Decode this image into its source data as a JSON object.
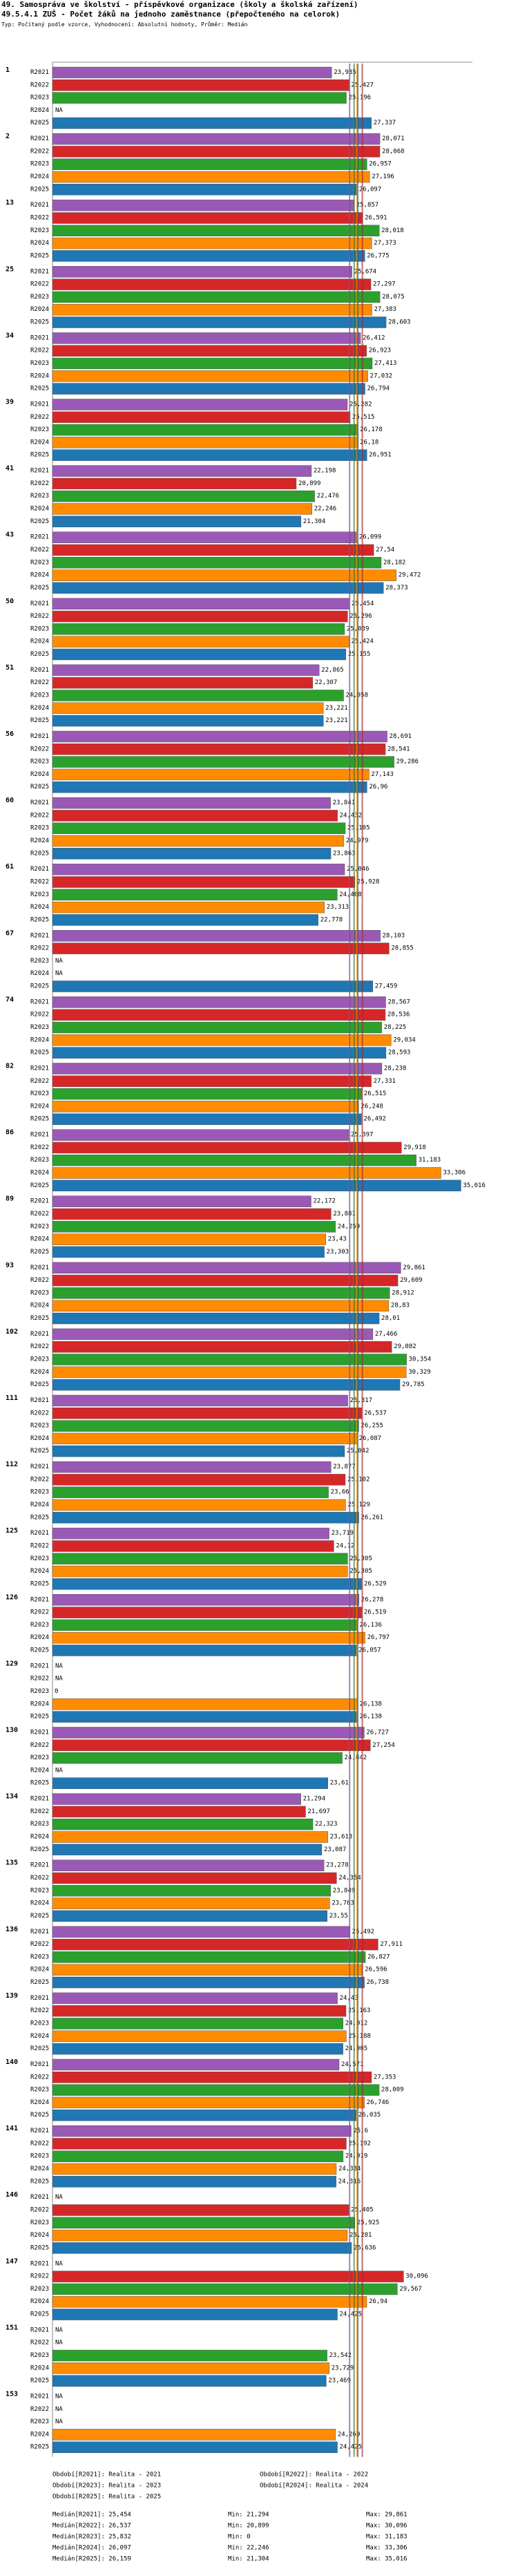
{
  "header": {
    "title_line1": "49. Samospráva ve školství - příspěvkové organizace (školy a školská zařízení)",
    "title_line2": "49.5.4.1 ZUŠ - Počet žáků na jednoho zaměstnance (přepočteného na celorok)",
    "subtitle": "Typ: Počítaný podle vzorce, Vyhodnocení: Absolutní hodnoty, Průměr: Medián"
  },
  "colors": {
    "R2021": "#9b59b6",
    "R2022": "#d62728",
    "R2023": "#2ca02c",
    "R2024": "#ff8c00",
    "R2025": "#1f77b4"
  },
  "chart_data": {
    "type": "bar",
    "orientation": "horizontal",
    "series_names": [
      "R2021",
      "R2022",
      "R2023",
      "R2024",
      "R2025"
    ],
    "xlim": [
      0,
      36
    ],
    "groups": [
      {
        "id": "1",
        "values": [
          23.935,
          25.427,
          25.196,
          null,
          27.337
        ]
      },
      {
        "id": "2",
        "values": [
          28.071,
          28.068,
          26.957,
          27.196,
          26.097
        ]
      },
      {
        "id": "13",
        "values": [
          25.857,
          26.591,
          28.018,
          27.373,
          26.775
        ]
      },
      {
        "id": "25",
        "values": [
          25.674,
          27.297,
          28.075,
          27.383,
          28.603
        ]
      },
      {
        "id": "34",
        "values": [
          26.412,
          26.923,
          27.413,
          27.032,
          26.794
        ]
      },
      {
        "id": "39",
        "values": [
          25.282,
          25.515,
          26.178,
          26.18,
          26.951
        ]
      },
      {
        "id": "41",
        "values": [
          22.198,
          20.899,
          22.476,
          22.246,
          21.304
        ]
      },
      {
        "id": "43",
        "values": [
          26.099,
          27.54,
          28.182,
          29.472,
          28.373
        ]
      },
      {
        "id": "50",
        "values": [
          25.454,
          25.296,
          25.039,
          25.424,
          25.155
        ]
      },
      {
        "id": "51",
        "values": [
          22.865,
          22.307,
          24.958,
          23.221,
          23.221
        ]
      },
      {
        "id": "56",
        "values": [
          28.691,
          28.541,
          29.286,
          27.143,
          26.96
        ]
      },
      {
        "id": "60",
        "values": [
          23.841,
          24.432,
          25.105,
          24.979,
          23.863
        ]
      },
      {
        "id": "61",
        "values": [
          25.046,
          25.928,
          24.408,
          23.313,
          22.778
        ]
      },
      {
        "id": "67",
        "values": [
          28.103,
          28.855,
          null,
          null,
          27.459
        ]
      },
      {
        "id": "74",
        "values": [
          28.567,
          28.536,
          28.225,
          29.034,
          28.593
        ]
      },
      {
        "id": "82",
        "values": [
          28.238,
          27.331,
          26.515,
          26.248,
          26.492
        ]
      },
      {
        "id": "86",
        "values": [
          25.397,
          29.918,
          31.183,
          33.306,
          35.016
        ]
      },
      {
        "id": "89",
        "values": [
          22.172,
          23.881,
          24.259,
          23.43,
          23.303
        ]
      },
      {
        "id": "93",
        "values": [
          29.861,
          29.609,
          28.912,
          28.83,
          28.01
        ]
      },
      {
        "id": "102",
        "values": [
          27.466,
          29.082,
          30.354,
          30.329,
          29.785
        ]
      },
      {
        "id": "111",
        "values": [
          25.317,
          26.537,
          26.255,
          26.087,
          25.042
        ]
      },
      {
        "id": "112",
        "values": [
          23.877,
          25.102,
          23.66,
          25.129,
          26.261
        ]
      },
      {
        "id": "125",
        "values": [
          23.719,
          24.12,
          25.305,
          25.305,
          26.529
        ]
      },
      {
        "id": "126",
        "values": [
          26.278,
          26.519,
          26.136,
          26.797,
          26.057
        ]
      },
      {
        "id": "129",
        "values": [
          null,
          null,
          0,
          26.138,
          26.138
        ]
      },
      {
        "id": "130",
        "values": [
          26.727,
          27.254,
          24.842,
          null,
          23.61
        ]
      },
      {
        "id": "134",
        "values": [
          21.294,
          21.697,
          22.323,
          23.613,
          23.087
        ]
      },
      {
        "id": "135",
        "values": [
          23.278,
          24.354,
          23.849,
          23.763,
          23.55
        ]
      },
      {
        "id": "136",
        "values": [
          25.492,
          27.911,
          26.827,
          26.596,
          26.738
        ]
      },
      {
        "id": "139",
        "values": [
          24.43,
          25.163,
          24.912,
          25.188,
          24.905
        ]
      },
      {
        "id": "140",
        "values": [
          24.571,
          27.353,
          28.009,
          26.746,
          26.035
        ]
      },
      {
        "id": "141",
        "values": [
          25.6,
          25.192,
          24.919,
          24.334,
          24.316
        ]
      },
      {
        "id": "146",
        "values": [
          null,
          25.405,
          25.925,
          25.281,
          25.636
        ]
      },
      {
        "id": "147",
        "values": [
          null,
          30.096,
          29.567,
          26.94,
          24.425
        ]
      },
      {
        "id": "151",
        "values": [
          null,
          null,
          23.542,
          23.729,
          23.469
        ]
      },
      {
        "id": "153",
        "values": [
          null,
          null,
          null,
          24.269,
          24.425
        ]
      }
    ],
    "value_labels": [
      [
        "23,935",
        "25,427",
        "25,196",
        "NA",
        "27,337"
      ],
      [
        "28,071",
        "28,068",
        "26,957",
        "27,196",
        "26,097"
      ],
      [
        "25,857",
        "26,591",
        "28,018",
        "27,373",
        "26,775"
      ],
      [
        "25,674",
        "27,297",
        "28,075",
        "27,383",
        "28,603"
      ],
      [
        "26,412",
        "26,923",
        "27,413",
        "27,032",
        "26,794"
      ],
      [
        "25,282",
        "25,515",
        "26,178",
        "26,18",
        "26,951"
      ],
      [
        "22,198",
        "20,899",
        "22,476",
        "22,246",
        "21,304"
      ],
      [
        "26,099",
        "27,54",
        "28,182",
        "29,472",
        "28,373"
      ],
      [
        "25,454",
        "25,296",
        "25,039",
        "25,424",
        "25,155"
      ],
      [
        "22,865",
        "22,307",
        "24,958",
        "23,221",
        "23,221"
      ],
      [
        "28,691",
        "28,541",
        "29,286",
        "27,143",
        "26,96"
      ],
      [
        "23,841",
        "24,432",
        "25,105",
        "24,979",
        "23,863"
      ],
      [
        "25,046",
        "25,928",
        "24,408",
        "23,313",
        "22,778"
      ],
      [
        "28,103",
        "28,855",
        "NA",
        "NA",
        "27,459"
      ],
      [
        "28,567",
        "28,536",
        "28,225",
        "29,034",
        "28,593"
      ],
      [
        "28,238",
        "27,331",
        "26,515",
        "26,248",
        "26,492"
      ],
      [
        "25,397",
        "29,918",
        "31,183",
        "33,306",
        "35,016"
      ],
      [
        "22,172",
        "23,881",
        "24,259",
        "23,43",
        "23,303"
      ],
      [
        "29,861",
        "29,609",
        "28,912",
        "28,83",
        "28,01"
      ],
      [
        "27,466",
        "29,082",
        "30,354",
        "30,329",
        "29,785"
      ],
      [
        "25,317",
        "26,537",
        "26,255",
        "26,087",
        "25,042"
      ],
      [
        "23,877",
        "25,102",
        "23,66",
        "25,129",
        "26,261"
      ],
      [
        "23,719",
        "24,12",
        "25,305",
        "25,305",
        "26,529"
      ],
      [
        "26,278",
        "26,519",
        "26,136",
        "26,797",
        "26,057"
      ],
      [
        "NA",
        "NA",
        "0",
        "26,138",
        "26,138"
      ],
      [
        "26,727",
        "27,254",
        "24,842",
        "NA",
        "23,61"
      ],
      [
        "21,294",
        "21,697",
        "22,323",
        "23,613",
        "23,087"
      ],
      [
        "23,278",
        "24,354",
        "23,849",
        "23,763",
        "23,55"
      ],
      [
        "25,492",
        "27,911",
        "26,827",
        "26,596",
        "26,738"
      ],
      [
        "24,43",
        "25,163",
        "24,912",
        "25,188",
        "24,905"
      ],
      [
        "24,571",
        "27,353",
        "28,009",
        "26,746",
        "26,035"
      ],
      [
        "25,6",
        "25,192",
        "24,919",
        "24,334",
        "24,316"
      ],
      [
        "NA",
        "25,405",
        "25,925",
        "25,281",
        "25,636"
      ],
      [
        "NA",
        "30,096",
        "29,567",
        "26,94",
        "24,425"
      ],
      [
        "NA",
        "NA",
        "23,542",
        "23,729",
        "23,469"
      ],
      [
        "NA",
        "NA",
        "NA",
        "24,269",
        "24,425"
      ]
    ],
    "reference_lines": [
      25.454,
      26.537,
      25.832,
      26.097,
      26.159
    ],
    "footer": {
      "obdobi": [
        "Období[R2021]: Realita - 2021",
        "Období[R2022]: Realita - 2022",
        "Období[R2023]: Realita - 2023",
        "Období[R2024]: Realita - 2024",
        "Období[R2025]: Realita - 2025"
      ],
      "stats": [
        {
          "median": "Medián[R2021]: 25,454",
          "min": "Min: 21,294",
          "max": "Max: 29,861"
        },
        {
          "median": "Medián[R2022]: 26,537",
          "min": "Min: 20,899",
          "max": "Max: 30,096"
        },
        {
          "median": "Medián[R2023]: 25,832",
          "min": "Min: 0",
          "max": "Max: 31,183"
        },
        {
          "median": "Medián[R2024]: 26,097",
          "min": "Min: 22,246",
          "max": "Max: 33,306"
        },
        {
          "median": "Medián[R2025]: 26,159",
          "min": "Min: 21,304",
          "max": "Max: 35,016"
        }
      ]
    }
  }
}
